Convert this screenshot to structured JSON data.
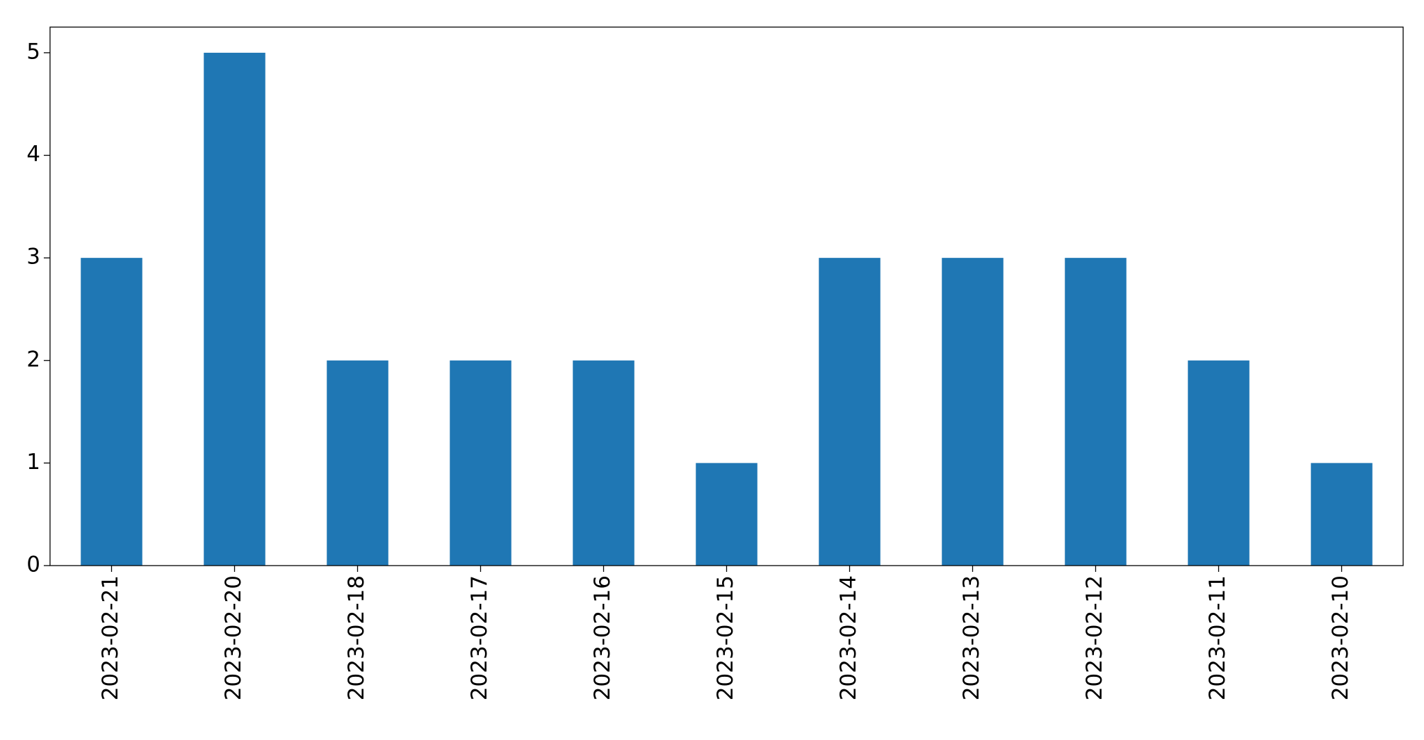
{
  "chart_data": {
    "type": "bar",
    "categories": [
      "2023-02-21",
      "2023-02-20",
      "2023-02-18",
      "2023-02-17",
      "2023-02-16",
      "2023-02-15",
      "2023-02-14",
      "2023-02-13",
      "2023-02-12",
      "2023-02-11",
      "2023-02-10"
    ],
    "values": [
      3,
      5,
      2,
      2,
      2,
      1,
      3,
      3,
      3,
      2,
      1
    ],
    "color": "#1f77b4",
    "ylim": [
      0,
      5.25
    ],
    "yticks": [
      0,
      1,
      2,
      3,
      4,
      5
    ],
    "grid": false
  }
}
